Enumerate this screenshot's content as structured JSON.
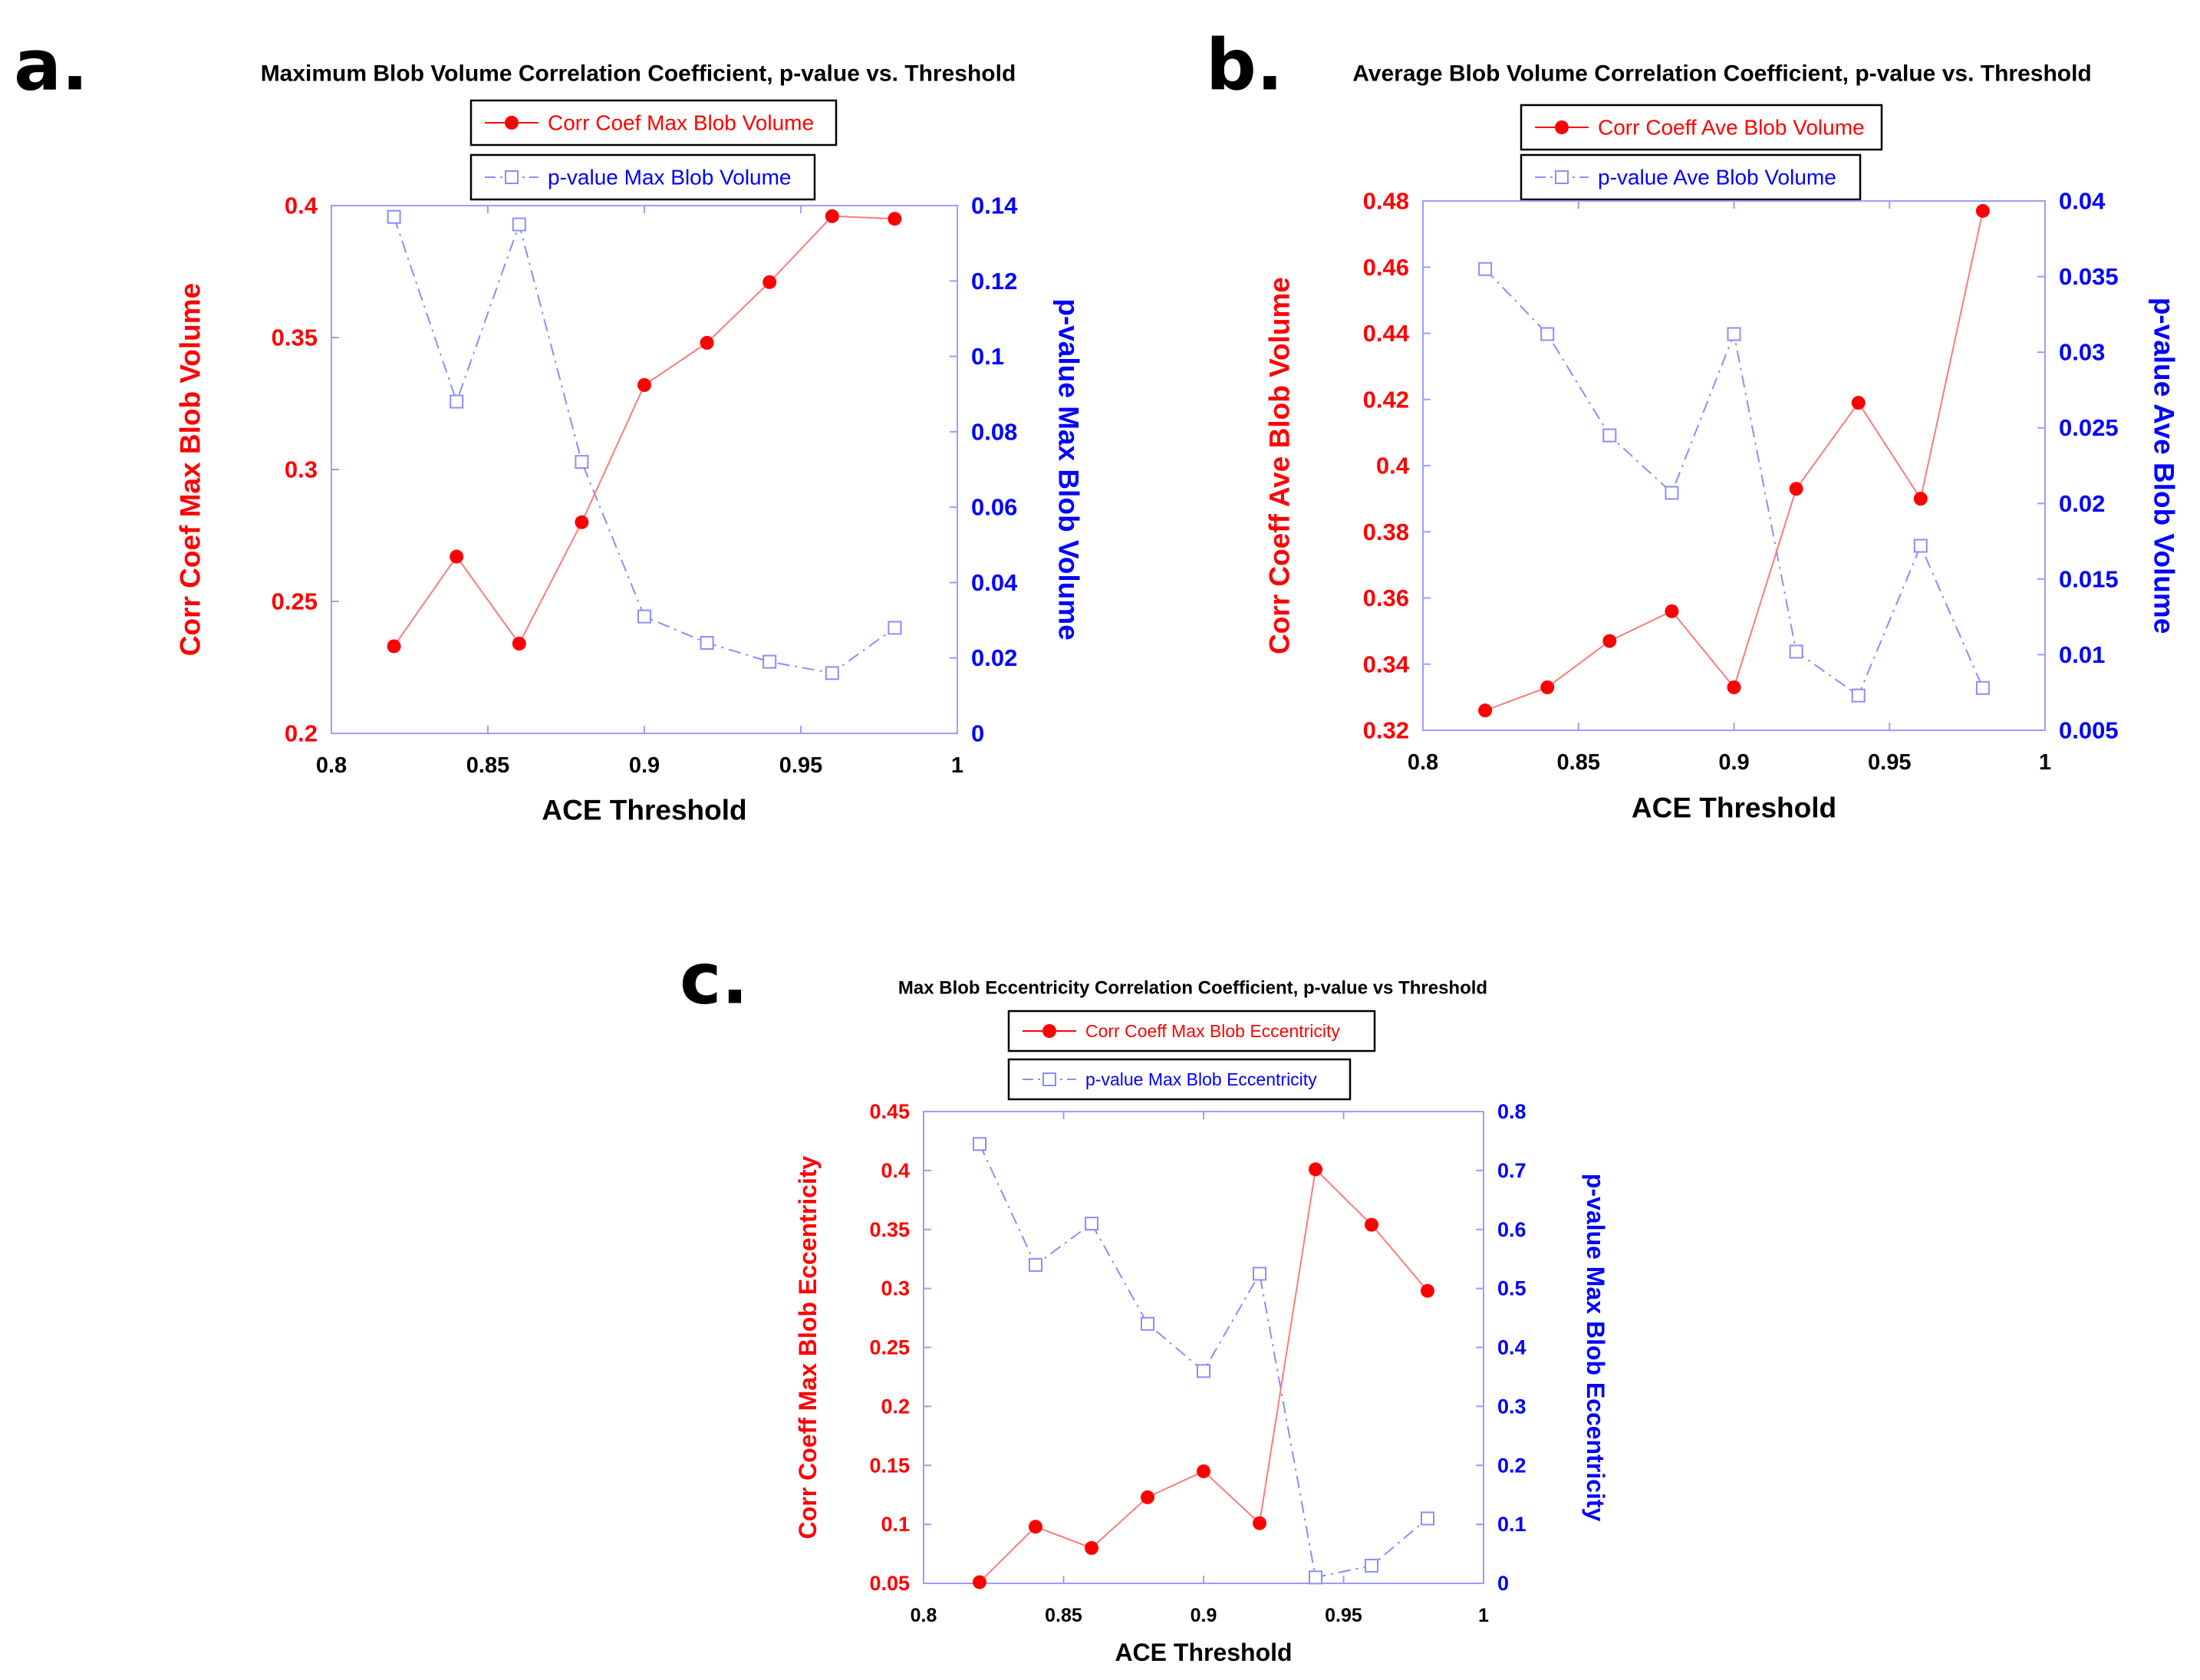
{
  "colors": {
    "corr": "#ff0000",
    "pval": "#0000ff",
    "pval_line": "#8c8cff",
    "frame": "#9c9cff",
    "text": "#000000",
    "legend_border": "#000000"
  },
  "chart_data": [
    {
      "panel": "a.",
      "type": "line",
      "title": "Maximum Blob Volume Correlation Coefficient, p-value  vs. Threshold",
      "xlabel": "ACE Threshold",
      "ylabel_left": "Corr Coef Max Blob Volume",
      "ylabel_right": "p-value Max Blob Volume",
      "xlim": [
        0.8,
        1
      ],
      "ylim_left": [
        0.2,
        0.4
      ],
      "ylim_right": [
        0,
        0.14
      ],
      "xticks": [
        "0.8",
        "0.85",
        "0.9",
        "0.95",
        "1"
      ],
      "yticks_left": [
        "0.2",
        "0.25",
        "0.3",
        "0.35",
        "0.4"
      ],
      "yticks_right": [
        "0",
        "0.02",
        "0.04",
        "0.06",
        "0.08",
        "0.1",
        "0.12",
        "0.14"
      ],
      "x": [
        0.82,
        0.84,
        0.86,
        0.88,
        0.9,
        0.92,
        0.94,
        0.96,
        0.98
      ],
      "series": [
        {
          "name": "Corr Coef Max Blob Volume",
          "axis": "left",
          "marker": "filled-circle",
          "values": [
            0.233,
            0.267,
            0.234,
            0.28,
            0.332,
            0.348,
            0.371,
            0.396,
            0.395
          ]
        },
        {
          "name": "p-value Max Blob Volume",
          "axis": "right",
          "marker": "open-square",
          "values": [
            0.137,
            0.088,
            0.135,
            0.072,
            0.031,
            0.024,
            0.019,
            0.016,
            0.028
          ]
        }
      ]
    },
    {
      "panel": "b.",
      "type": "line",
      "title": "Average Blob Volume Correlation Coefficient, p-value vs. Threshold",
      "xlabel": "ACE Threshold",
      "ylabel_left": "Corr Coeff Ave Blob Volume",
      "ylabel_right": "p-value Ave Blob Volume",
      "xlim": [
        0.8,
        1
      ],
      "ylim_left": [
        0.32,
        0.48
      ],
      "ylim_right": [
        0.005,
        0.04
      ],
      "xticks": [
        "0.8",
        "0.85",
        "0.9",
        "0.95",
        "1"
      ],
      "yticks_left": [
        "0.32",
        "0.34",
        "0.36",
        "0.38",
        "0.4",
        "0.42",
        "0.44",
        "0.46",
        "0.48"
      ],
      "yticks_right": [
        "0.005",
        "0.01",
        "0.015",
        "0.02",
        "0.025",
        "0.03",
        "0.035",
        "0.04"
      ],
      "x": [
        0.82,
        0.84,
        0.86,
        0.88,
        0.9,
        0.92,
        0.94,
        0.96,
        0.98
      ],
      "series": [
        {
          "name": "Corr Coeff Ave Blob Volume",
          "axis": "left",
          "marker": "filled-circle",
          "values": [
            0.326,
            0.333,
            0.347,
            0.356,
            0.333,
            0.393,
            0.419,
            0.39,
            0.477
          ]
        },
        {
          "name": "p-value Ave Blob Volume",
          "axis": "right",
          "marker": "open-square",
          "values": [
            0.0355,
            0.0312,
            0.0245,
            0.0207,
            0.0312,
            0.0102,
            0.0073,
            0.0172,
            0.0078
          ]
        }
      ]
    },
    {
      "panel": "c.",
      "type": "line",
      "title": "Max Blob Eccentricity Correlation Coefficient, p-value vs Threshold",
      "xlabel": "ACE Threshold",
      "ylabel_left": "Corr Coeff Max Blob Eccentricity",
      "ylabel_right": "p-value Max Blob Eccentricity",
      "xlim": [
        0.8,
        1
      ],
      "ylim_left": [
        0.05,
        0.45
      ],
      "ylim_right": [
        0,
        0.8
      ],
      "xticks": [
        "0.8",
        "0.85",
        "0.9",
        "0.95",
        "1"
      ],
      "yticks_left": [
        "0.05",
        "0.1",
        "0.15",
        "0.2",
        "0.25",
        "0.3",
        "0.35",
        "0.4",
        "0.45"
      ],
      "yticks_right": [
        "0",
        "0.1",
        "0.2",
        "0.3",
        "0.4",
        "0.5",
        "0.6",
        "0.7",
        "0.8"
      ],
      "x": [
        0.82,
        0.84,
        0.86,
        0.88,
        0.9,
        0.92,
        0.94,
        0.96,
        0.98
      ],
      "series": [
        {
          "name": "Corr Coeff Max Blob Eccentricity",
          "axis": "left",
          "marker": "filled-circle",
          "values": [
            0.051,
            0.098,
            0.08,
            0.123,
            0.145,
            0.101,
            0.401,
            0.354,
            0.298
          ]
        },
        {
          "name": "p-value Max Blob Eccentricity",
          "axis": "right",
          "marker": "open-square",
          "values": [
            0.745,
            0.54,
            0.61,
            0.44,
            0.36,
            0.525,
            0.01,
            0.03,
            0.11
          ]
        }
      ]
    }
  ]
}
